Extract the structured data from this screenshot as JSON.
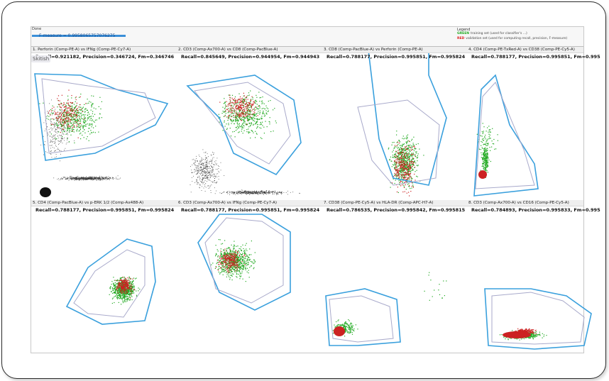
{
  "status": {
    "label": "Done",
    "fmeasure_text": "F-measure = 0.9958065757076275",
    "fmeasure_progress": 1.0,
    "bar_color": "#3a8fd8"
  },
  "legend": {
    "title": "Legend",
    "items": [
      {
        "key": "GREEN",
        "color": "#22aa22",
        "text": "training set (used for classifier's ...)"
      },
      {
        "key": "RED",
        "color": "#dd2222",
        "text": "validation set (used for computing recall, precision, F-measure)"
      }
    ]
  },
  "skitish_label": "Skitish",
  "colors": {
    "accent_line": "#3aa0dd",
    "inner_line": "#a9aacb",
    "train": "#22aa22",
    "validation": "#cc2222",
    "background_points": "#333333"
  },
  "panels": [
    {
      "title": "1. Perforin (Comp-PE-A) vs IFNg (Comp-PE-Cy7-A)",
      "metrics": "Recall=0.921182, Precision=0.346724, Fm=0.346746",
      "shape": "top-left-spread"
    },
    {
      "title": "2. CD3 (Comp-Ax700-A) vs CD8 (Comp-PacBlue-A)",
      "metrics": "Recall=0.845649, Precision=0.944954, Fm=0.944943",
      "shape": "cd3"
    },
    {
      "title": "3. CD8 (Comp-PacBlue-A) vs Perforin (Comp-PE-A)",
      "metrics": "Recall=0.788177, Precision=0.995851, Fm=0.995824",
      "shape": "column"
    },
    {
      "title": "4. CD4 (Comp-PE-TxRed-A) vs CD38 (Comp-PE-Cy5-A)",
      "metrics": "Recall=0.788177, Precision=0.995851, Fm=0.995",
      "shape": "low-left"
    },
    {
      "title": "5. CD4 (Comp-PacBlue-A) vs p-ERK 1/2 (Comp-Ax488-A)",
      "metrics": "Recall=0.788177, Precision=0.995851, Fm=0.995824",
      "shape": "center-blob"
    },
    {
      "title": "6. CD3 (Comp-Ax700-A) vs IFNg (Comp-PE-Cy7-A)",
      "metrics": "Recall=0.788177, Precision=0.995851, Fm=0.995824",
      "shape": "upper-blob"
    },
    {
      "title": "7. CD38 (Comp-PE-Cy5-A) vs HLA-DR (Comp-APC-H7-A)",
      "metrics": "Recall=0.786535, Precision=0.995842, Fm=0.995815",
      "shape": "bottom-left"
    },
    {
      "title": "8. CD3 (Comp-Ax700-A) vs CD16 (Comp-PE-Cy5-A)",
      "metrics": "Recall=0.784893, Precision=0.995833, Fm=0.995",
      "shape": "bottom-wide"
    }
  ]
}
